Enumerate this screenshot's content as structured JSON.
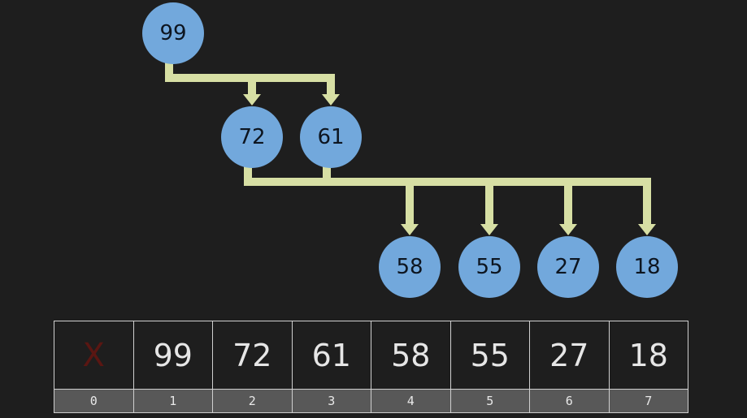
{
  "colors": {
    "background": "#1e1e1e",
    "node_fill": "#72a8dc",
    "node_text": "#0d1520",
    "arrow": "#d7dfa4",
    "sentinel": "#5a1612",
    "index_bar": "#585858"
  },
  "tree": {
    "nodes": [
      {
        "id": "n99",
        "label": "99"
      },
      {
        "id": "n72",
        "label": "72"
      },
      {
        "id": "n61",
        "label": "61"
      },
      {
        "id": "n58",
        "label": "58"
      },
      {
        "id": "n55",
        "label": "55"
      },
      {
        "id": "n27",
        "label": "27"
      },
      {
        "id": "n18",
        "label": "18"
      }
    ],
    "edges": [
      {
        "from": "99",
        "to": "72"
      },
      {
        "from": "99",
        "to": "61"
      },
      {
        "from": "72",
        "to": "58"
      },
      {
        "from": "72",
        "to": "55"
      },
      {
        "from": "61",
        "to": "27"
      },
      {
        "from": "61",
        "to": "18"
      }
    ]
  },
  "array": {
    "cells": [
      {
        "value": "X",
        "index": "0"
      },
      {
        "value": "99",
        "index": "1"
      },
      {
        "value": "72",
        "index": "2"
      },
      {
        "value": "61",
        "index": "3"
      },
      {
        "value": "58",
        "index": "4"
      },
      {
        "value": "55",
        "index": "5"
      },
      {
        "value": "27",
        "index": "6"
      },
      {
        "value": "18",
        "index": "7"
      }
    ]
  }
}
